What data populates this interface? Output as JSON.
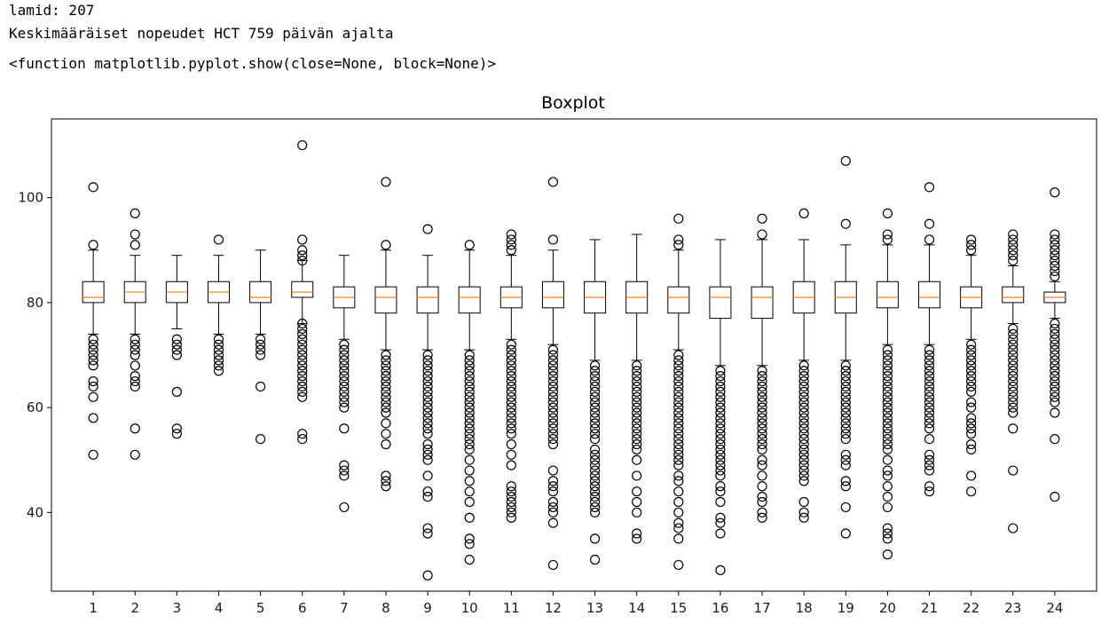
{
  "output": {
    "line1": "lamid: 207",
    "line2": "Keskimääräiset nopeudet HCT 759 päivän ajalta",
    "line3": "<function matplotlib.pyplot.show(close=None, block=None)>"
  },
  "colors": {
    "box": "#000000",
    "median": "#ff7f0e",
    "outlier": "#000000"
  },
  "chart_data": {
    "type": "boxplot",
    "title": "Boxplot",
    "xlabel": "",
    "ylabel": "",
    "ylim": [
      25,
      115
    ],
    "yticks": [
      40,
      60,
      80,
      100
    ],
    "grid": false,
    "categories": [
      "1",
      "2",
      "3",
      "4",
      "5",
      "6",
      "7",
      "8",
      "9",
      "10",
      "11",
      "12",
      "13",
      "14",
      "15",
      "16",
      "17",
      "18",
      "19",
      "20",
      "21",
      "22",
      "23",
      "24"
    ],
    "boxes": [
      {
        "label": "1",
        "whislo": 74,
        "q1": 80,
        "med": 81,
        "q3": 84,
        "whishi": 90,
        "fliers": [
          102,
          91,
          73,
          72,
          71,
          70,
          69,
          68,
          65,
          64,
          62,
          58,
          51
        ]
      },
      {
        "label": "2",
        "whislo": 74,
        "q1": 80,
        "med": 82,
        "q3": 84,
        "whishi": 89,
        "fliers": [
          97,
          93,
          91,
          73,
          72,
          71,
          70,
          68,
          66,
          65,
          64,
          56,
          51
        ]
      },
      {
        "label": "3",
        "whislo": 75,
        "q1": 80,
        "med": 82,
        "q3": 84,
        "whishi": 89,
        "fliers": [
          73,
          72,
          71,
          70,
          63,
          56,
          55
        ]
      },
      {
        "label": "4",
        "whislo": 74,
        "q1": 80,
        "med": 82,
        "q3": 84,
        "whishi": 89,
        "fliers": [
          92,
          73,
          72,
          71,
          70,
          69,
          68,
          67
        ]
      },
      {
        "label": "5",
        "whislo": 74,
        "q1": 80,
        "med": 81,
        "q3": 84,
        "whishi": 90,
        "fliers": [
          73,
          72,
          71,
          70,
          64,
          54
        ]
      },
      {
        "label": "6",
        "whislo": 76,
        "q1": 81,
        "med": 82,
        "q3": 84,
        "whishi": 88,
        "fliers": [
          110,
          92,
          90,
          89,
          88,
          76,
          75,
          74,
          73,
          72,
          71,
          70,
          69,
          68,
          67,
          66,
          65,
          64,
          63,
          62,
          55,
          54
        ]
      },
      {
        "label": "7",
        "whislo": 73,
        "q1": 79,
        "med": 81,
        "q3": 83,
        "whishi": 89,
        "fliers": [
          72,
          71,
          70,
          69,
          68,
          67,
          66,
          65,
          64,
          63,
          62,
          61,
          60,
          56,
          49,
          48,
          47,
          41
        ]
      },
      {
        "label": "8",
        "whislo": 71,
        "q1": 78,
        "med": 81,
        "q3": 83,
        "whishi": 90,
        "fliers": [
          103,
          91,
          70,
          69,
          68,
          67,
          66,
          65,
          64,
          63,
          62,
          61,
          60,
          59,
          57,
          55,
          53,
          47,
          46,
          45
        ]
      },
      {
        "label": "9",
        "whislo": 71,
        "q1": 78,
        "med": 81,
        "q3": 83,
        "whishi": 89,
        "fliers": [
          94,
          70,
          69,
          68,
          67,
          66,
          65,
          64,
          63,
          62,
          61,
          60,
          59,
          58,
          57,
          56,
          55,
          53,
          52,
          51,
          50,
          47,
          44,
          43,
          37,
          36,
          28
        ]
      },
      {
        "label": "10",
        "whislo": 71,
        "q1": 78,
        "med": 81,
        "q3": 83,
        "whishi": 90,
        "fliers": [
          91,
          70,
          69,
          68,
          67,
          66,
          65,
          64,
          63,
          62,
          61,
          60,
          59,
          58,
          57,
          56,
          55,
          54,
          53,
          52,
          50,
          48,
          46,
          44,
          42,
          39,
          35,
          34,
          31
        ]
      },
      {
        "label": "11",
        "whislo": 73,
        "q1": 79,
        "med": 81,
        "q3": 83,
        "whishi": 89,
        "fliers": [
          93,
          92,
          91,
          90,
          72,
          71,
          70,
          69,
          68,
          67,
          66,
          65,
          64,
          63,
          62,
          61,
          60,
          59,
          58,
          57,
          56,
          55,
          53,
          51,
          49,
          45,
          44,
          43,
          42,
          41,
          40,
          39
        ]
      },
      {
        "label": "12",
        "whislo": 72,
        "q1": 79,
        "med": 81,
        "q3": 84,
        "whishi": 90,
        "fliers": [
          103,
          92,
          71,
          70,
          69,
          68,
          67,
          66,
          65,
          64,
          63,
          62,
          61,
          60,
          59,
          58,
          57,
          56,
          55,
          54,
          53,
          48,
          46,
          45,
          44,
          42,
          41,
          40,
          38,
          30
        ]
      },
      {
        "label": "13",
        "whislo": 69,
        "q1": 78,
        "med": 81,
        "q3": 84,
        "whishi": 92,
        "fliers": [
          68,
          67,
          66,
          65,
          64,
          63,
          62,
          61,
          60,
          59,
          58,
          57,
          56,
          55,
          54,
          52,
          51,
          50,
          49,
          48,
          47,
          46,
          45,
          44,
          43,
          42,
          41,
          40,
          35,
          31
        ]
      },
      {
        "label": "14",
        "whislo": 69,
        "q1": 78,
        "med": 81,
        "q3": 84,
        "whishi": 93,
        "fliers": [
          68,
          67,
          66,
          65,
          64,
          63,
          62,
          61,
          60,
          59,
          58,
          57,
          56,
          55,
          54,
          53,
          52,
          50,
          47,
          44,
          42,
          40,
          36,
          35
        ]
      },
      {
        "label": "15",
        "whislo": 71,
        "q1": 78,
        "med": 81,
        "q3": 83,
        "whishi": 90,
        "fliers": [
          96,
          92,
          91,
          70,
          69,
          68,
          67,
          66,
          65,
          64,
          63,
          62,
          61,
          60,
          59,
          58,
          57,
          56,
          55,
          54,
          53,
          52,
          51,
          50,
          49,
          47,
          46,
          44,
          42,
          40,
          38,
          37,
          35,
          30
        ]
      },
      {
        "label": "16",
        "whislo": 68,
        "q1": 77,
        "med": 81,
        "q3": 83,
        "whishi": 92,
        "fliers": [
          67,
          66,
          65,
          64,
          63,
          62,
          61,
          60,
          59,
          58,
          57,
          56,
          55,
          54,
          53,
          52,
          51,
          50,
          49,
          48,
          47,
          45,
          44,
          42,
          39,
          38,
          36,
          29
        ]
      },
      {
        "label": "17",
        "whislo": 68,
        "q1": 77,
        "med": 81,
        "q3": 83,
        "whishi": 92,
        "fliers": [
          96,
          93,
          67,
          66,
          65,
          64,
          63,
          62,
          61,
          60,
          59,
          58,
          57,
          56,
          55,
          54,
          53,
          52,
          50,
          49,
          47,
          45,
          43,
          42,
          40,
          39
        ]
      },
      {
        "label": "18",
        "whislo": 69,
        "q1": 78,
        "med": 81,
        "q3": 84,
        "whishi": 92,
        "fliers": [
          97,
          68,
          67,
          66,
          65,
          64,
          63,
          62,
          61,
          60,
          59,
          58,
          57,
          56,
          55,
          54,
          53,
          52,
          51,
          50,
          49,
          48,
          47,
          46,
          42,
          40,
          39
        ]
      },
      {
        "label": "19",
        "whislo": 69,
        "q1": 78,
        "med": 81,
        "q3": 84,
        "whishi": 91,
        "fliers": [
          107,
          95,
          68,
          67,
          66,
          65,
          64,
          63,
          62,
          61,
          60,
          59,
          58,
          57,
          56,
          55,
          54,
          51,
          50,
          49,
          46,
          45,
          41,
          36
        ]
      },
      {
        "label": "20",
        "whislo": 72,
        "q1": 79,
        "med": 81,
        "q3": 84,
        "whishi": 91,
        "fliers": [
          97,
          93,
          92,
          71,
          70,
          69,
          68,
          67,
          66,
          65,
          64,
          63,
          62,
          61,
          60,
          59,
          58,
          57,
          56,
          55,
          54,
          53,
          52,
          50,
          48,
          47,
          45,
          43,
          41,
          37,
          36,
          35,
          32
        ]
      },
      {
        "label": "21",
        "whislo": 72,
        "q1": 79,
        "med": 81,
        "q3": 84,
        "whishi": 91,
        "fliers": [
          102,
          95,
          92,
          71,
          70,
          69,
          68,
          67,
          66,
          65,
          64,
          63,
          62,
          61,
          60,
          59,
          58,
          57,
          56,
          54,
          51,
          50,
          49,
          48,
          45,
          44
        ]
      },
      {
        "label": "22",
        "whislo": 73,
        "q1": 79,
        "med": 81,
        "q3": 83,
        "whishi": 89,
        "fliers": [
          92,
          91,
          90,
          72,
          71,
          70,
          69,
          68,
          67,
          66,
          65,
          64,
          63,
          61,
          60,
          58,
          57,
          56,
          55,
          53,
          52,
          47,
          44
        ]
      },
      {
        "label": "23",
        "whislo": 76,
        "q1": 80,
        "med": 81,
        "q3": 83,
        "whishi": 87,
        "fliers": [
          93,
          92,
          91,
          90,
          89,
          88,
          75,
          74,
          73,
          72,
          71,
          70,
          69,
          68,
          67,
          66,
          65,
          64,
          63,
          62,
          61,
          60,
          59,
          56,
          48,
          37
        ]
      },
      {
        "label": "24",
        "whislo": 77,
        "q1": 80,
        "med": 81,
        "q3": 82,
        "whishi": 84,
        "fliers": [
          101,
          93,
          92,
          91,
          90,
          89,
          88,
          87,
          86,
          85,
          76,
          75,
          74,
          73,
          72,
          71,
          70,
          69,
          68,
          67,
          66,
          65,
          64,
          63,
          62,
          61,
          59,
          54,
          43
        ]
      }
    ]
  }
}
